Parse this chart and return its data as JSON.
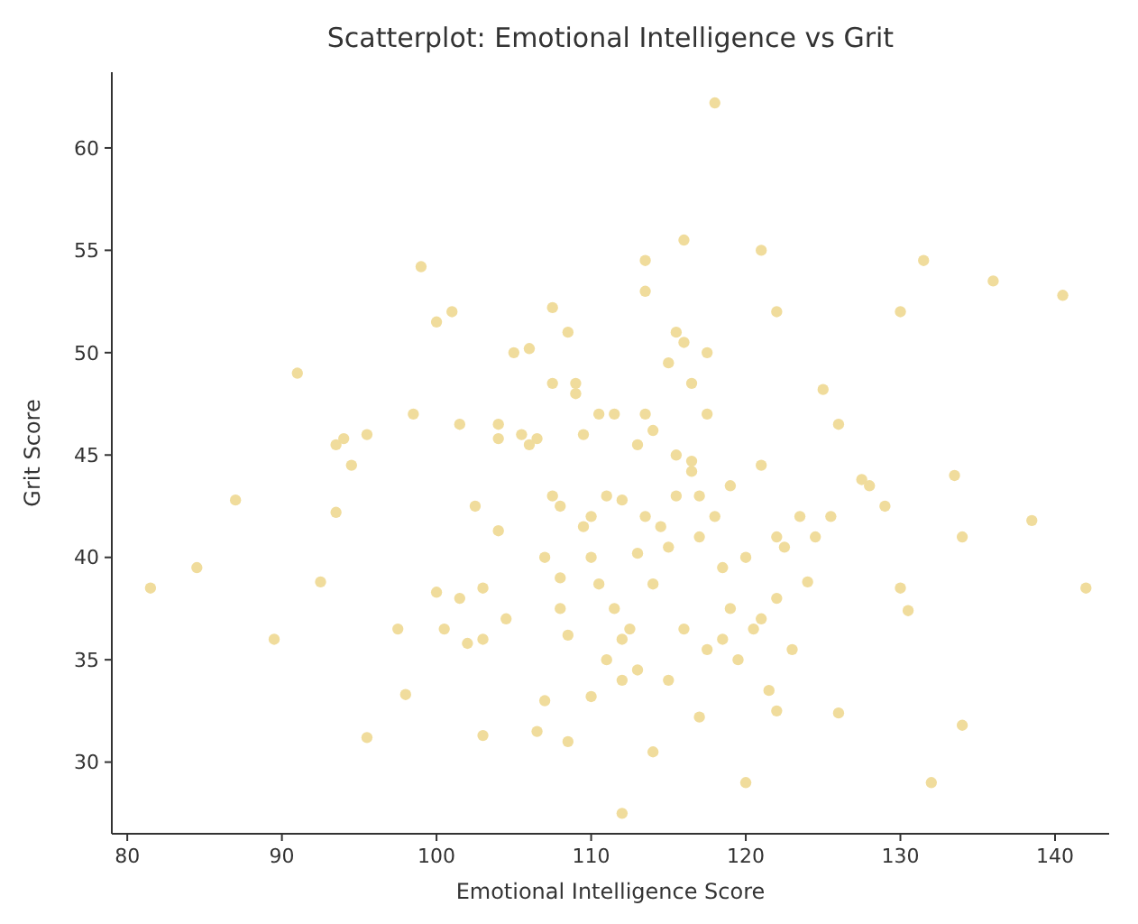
{
  "chart_data": {
    "type": "scatter",
    "title": "Scatterplot: Emotional Intelligence vs Grit",
    "xlabel": "Emotional Intelligence Score",
    "ylabel": "Grit Score",
    "xlim": [
      79,
      143.5
    ],
    "ylim": [
      26.5,
      63.7
    ],
    "xticks": [
      80,
      90,
      100,
      110,
      120,
      130,
      140
    ],
    "yticks": [
      30,
      35,
      40,
      45,
      50,
      55,
      60
    ],
    "grid": false,
    "marker": "circle",
    "x": [
      81.5,
      84.5,
      87,
      89.5,
      91,
      92.5,
      93.5,
      93.5,
      94,
      94.5,
      95.5,
      95.5,
      97.5,
      98,
      98.5,
      99,
      100,
      100,
      100.5,
      101,
      101.5,
      101.5,
      102,
      102.5,
      103,
      103,
      103,
      104,
      104,
      104,
      104.5,
      105,
      105.5,
      106,
      106,
      106.5,
      106.5,
      107,
      107,
      107.5,
      107.5,
      107.5,
      108,
      108,
      108,
      108.5,
      108.5,
      108.5,
      109,
      109,
      109.5,
      109.5,
      110,
      110,
      110,
      110.5,
      110.5,
      111,
      111,
      111.5,
      111.5,
      112,
      112,
      112,
      112,
      112.5,
      113,
      113,
      113,
      113.5,
      113.5,
      113.5,
      113.5,
      114,
      114,
      114,
      114.5,
      115,
      115,
      115,
      115.5,
      115.5,
      115.5,
      116,
      116,
      116,
      116.5,
      116.5,
      116.5,
      117,
      117,
      117,
      117.5,
      117.5,
      117.5,
      118,
      118,
      118.5,
      118.5,
      119,
      119,
      119.5,
      120,
      120,
      120.5,
      121,
      121,
      121,
      121.5,
      122,
      122,
      122,
      122,
      122.5,
      123,
      123.5,
      124,
      124.5,
      125,
      125.5,
      126,
      126,
      127.5,
      128,
      129,
      130,
      130,
      130.5,
      131.5,
      132,
      133.5,
      134,
      134,
      136,
      138.5,
      140.5,
      142
    ],
    "series": [
      {
        "color": "#f0dc9c",
        "values": [
          38.5,
          39.5,
          42.8,
          36,
          49,
          38.8,
          42.2,
          45.5,
          45.8,
          44.5,
          46,
          31.2,
          36.5,
          33.3,
          47,
          54.2,
          51.5,
          38.3,
          36.5,
          52,
          46.5,
          38,
          35.8,
          42.5,
          38.5,
          36,
          31.3,
          46.5,
          45.8,
          41.3,
          37,
          50,
          46,
          50.2,
          45.5,
          31.5,
          45.8,
          33,
          40,
          52.2,
          48.5,
          43,
          42.5,
          39,
          37.5,
          51,
          36.2,
          31,
          48.5,
          48,
          46,
          41.5,
          42,
          40,
          33.2,
          47,
          38.7,
          43,
          35,
          47,
          37.5,
          42.8,
          36,
          34,
          27.5,
          36.5,
          45.5,
          40.2,
          34.5,
          54.5,
          53,
          47,
          42,
          46.2,
          38.7,
          30.5,
          41.5,
          40.5,
          34,
          49.5,
          51,
          45,
          43,
          55.5,
          50.5,
          36.5,
          48.5,
          44.7,
          44.2,
          41,
          43,
          32.2,
          50,
          47,
          35.5,
          62.2,
          42,
          36,
          39.5,
          37.5,
          43.5,
          35,
          40,
          29,
          36.5,
          55,
          44.5,
          37,
          33.5,
          52,
          41,
          38,
          32.5,
          40.5,
          35.5,
          42,
          38.8,
          41,
          48.2,
          42,
          46.5,
          32.4,
          43.8,
          43.5,
          42.5,
          52,
          38.5,
          37.4,
          54.5,
          29,
          44,
          41,
          31.8,
          53.5,
          41.8,
          52.8,
          38.5
        ]
      }
    ]
  }
}
